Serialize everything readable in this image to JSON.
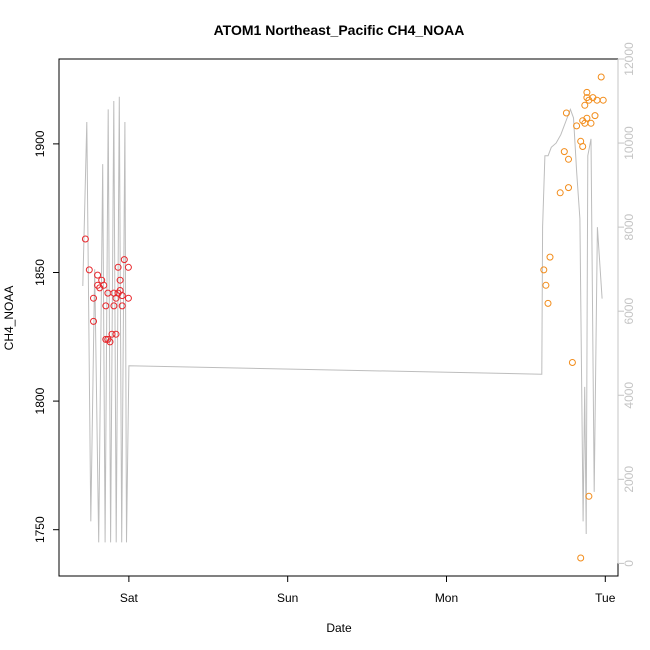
{
  "chart_data": {
    "type": "scatter",
    "title": "ATOM1 Northeast_Pacific CH4_NOAA",
    "xlabel": "Date",
    "ylabel": "CH4_NOAA",
    "x_ticks": [
      "Sat",
      "Sun",
      "Mon",
      "Tue"
    ],
    "x_ticks_pos": [
      1.0,
      2.0,
      3.0,
      4.0
    ],
    "xlim": [
      0.56,
      4.08
    ],
    "ylim": [
      1732,
      1933
    ],
    "y_ticks": [
      "1750",
      "1800",
      "1850",
      "1900"
    ],
    "y_ticks_vals": [
      1750,
      1800,
      1850,
      1900
    ],
    "y2lim": [
      -300,
      12000
    ],
    "y2_ticks": [
      "0",
      "2000",
      "4000",
      "6000",
      "8000",
      "10000",
      "12000"
    ],
    "y2_ticks_vals": [
      0,
      2000,
      4000,
      6000,
      8000,
      10000,
      12000
    ],
    "colors": {
      "series_red": "#e8262b",
      "series_orange": "#f28c1a",
      "altitude_line": "#bdbdbd",
      "right_axis": "#c4c4c4",
      "axis": "#000000"
    },
    "series": [
      {
        "color": "red",
        "points": [
          [
            0.726,
            1863
          ],
          [
            0.751,
            1851
          ],
          [
            0.777,
            1840
          ],
          [
            0.777,
            1831
          ],
          [
            0.803,
            1849
          ],
          [
            0.803,
            1845
          ],
          [
            0.816,
            1844
          ],
          [
            0.829,
            1847
          ],
          [
            0.842,
            1845
          ],
          [
            0.855,
            1837
          ],
          [
            0.855,
            1824
          ],
          [
            0.868,
            1842
          ],
          [
            0.868,
            1824
          ],
          [
            0.881,
            1823
          ],
          [
            0.894,
            1826
          ],
          [
            0.906,
            1842
          ],
          [
            0.906,
            1837
          ],
          [
            0.919,
            1826
          ],
          [
            0.919,
            1840
          ],
          [
            0.932,
            1852
          ],
          [
            0.932,
            1842
          ],
          [
            0.945,
            1843
          ],
          [
            0.945,
            1847
          ],
          [
            0.958,
            1837
          ],
          [
            0.958,
            1841
          ],
          [
            0.971,
            1855
          ],
          [
            0.997,
            1852
          ],
          [
            0.997,
            1840
          ]
        ]
      },
      {
        "color": "orange",
        "points": [
          [
            3.613,
            1851
          ],
          [
            3.626,
            1845
          ],
          [
            3.639,
            1838
          ],
          [
            3.652,
            1856
          ],
          [
            3.716,
            1881
          ],
          [
            3.742,
            1897
          ],
          [
            3.755,
            1912
          ],
          [
            3.768,
            1894
          ],
          [
            3.768,
            1883
          ],
          [
            3.793,
            1815
          ],
          [
            3.819,
            1907
          ],
          [
            3.845,
            1901
          ],
          [
            3.845,
            1739
          ],
          [
            3.858,
            1909
          ],
          [
            3.858,
            1899
          ],
          [
            3.871,
            1915
          ],
          [
            3.871,
            1908
          ],
          [
            3.884,
            1920
          ],
          [
            3.884,
            1918
          ],
          [
            3.884,
            1910
          ],
          [
            3.897,
            1917
          ],
          [
            3.897,
            1763
          ],
          [
            3.91,
            1908
          ],
          [
            3.922,
            1918
          ],
          [
            3.935,
            1911
          ],
          [
            3.948,
            1917
          ],
          [
            3.974,
            1926
          ],
          [
            3.987,
            1917
          ]
        ]
      }
    ],
    "altitude_line": [
      [
        0.71,
        6600
      ],
      [
        0.735,
        10500
      ],
      [
        0.76,
        1000
      ],
      [
        0.785,
        7000
      ],
      [
        0.81,
        500
      ],
      [
        0.835,
        9500
      ],
      [
        0.85,
        500
      ],
      [
        0.87,
        10800
      ],
      [
        0.885,
        500
      ],
      [
        0.905,
        11000
      ],
      [
        0.92,
        500
      ],
      [
        0.94,
        11100
      ],
      [
        0.955,
        500
      ],
      [
        0.975,
        10500
      ],
      [
        0.985,
        500
      ],
      [
        1.0,
        4700
      ],
      [
        3.6,
        4500
      ],
      [
        3.605,
        8000
      ],
      [
        3.62,
        9700
      ],
      [
        3.64,
        9700
      ],
      [
        3.66,
        9900
      ],
      [
        3.69,
        10000
      ],
      [
        3.72,
        10200
      ],
      [
        3.75,
        10500
      ],
      [
        3.78,
        10800
      ],
      [
        3.8,
        10600
      ],
      [
        3.82,
        9300
      ],
      [
        3.84,
        8200
      ],
      [
        3.86,
        1000
      ],
      [
        3.87,
        4200
      ],
      [
        3.88,
        700
      ],
      [
        3.89,
        9700
      ],
      [
        3.91,
        10100
      ],
      [
        3.93,
        1700
      ],
      [
        3.95,
        8000
      ],
      [
        3.98,
        6300
      ]
    ]
  }
}
